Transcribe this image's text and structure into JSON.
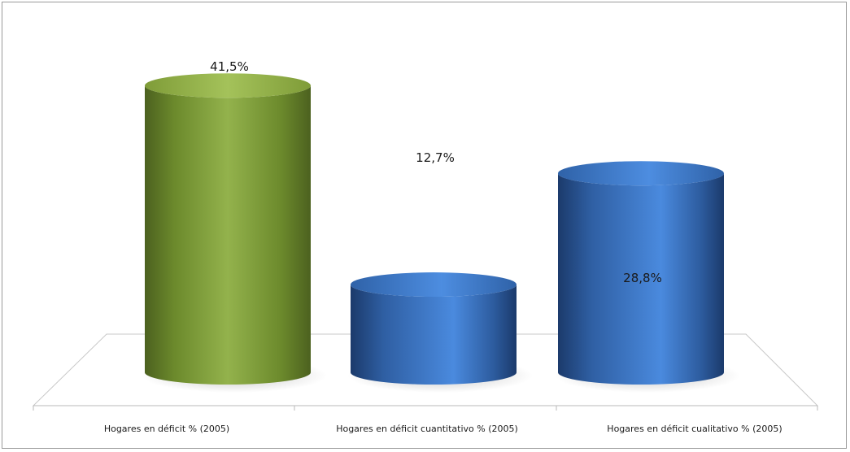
{
  "chart_data": {
    "type": "bar",
    "style": "3d-cylinder",
    "categories": [
      "Hogares en déficit % (2005)",
      "Hogares en déficit cuantitativo % (2005)",
      "Hogares en déficit cualitativo % (2005)"
    ],
    "values": [
      41.5,
      12.7,
      28.8
    ],
    "value_labels": [
      "41,5%",
      "12,7%",
      "28,8%"
    ],
    "colors": [
      "#8aa840",
      "#3f78c2",
      "#3f78c2"
    ],
    "title": "",
    "xlabel": "",
    "ylabel": "",
    "ylim": [
      0,
      45
    ],
    "grid": false,
    "legend": "none"
  }
}
